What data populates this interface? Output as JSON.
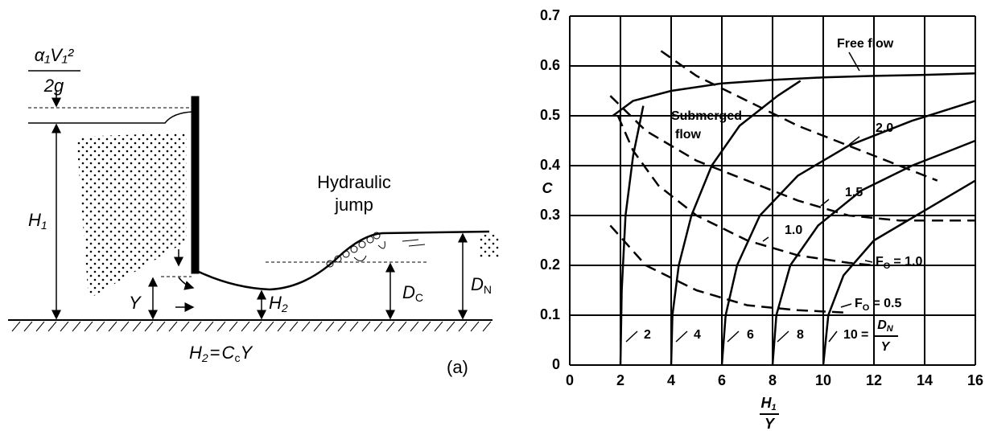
{
  "diagram": {
    "velocity_head": {
      "numerator": "α₁V₁²",
      "denominator": "2g"
    },
    "upstream_depth": {
      "symbol": "H",
      "subscript": "1"
    },
    "gate_opening": "Y",
    "contracted_depth": {
      "symbol": "H",
      "subscript": "2"
    },
    "jump_label": [
      "Hydraulic",
      "jump"
    ],
    "conjugate_depth": {
      "symbol": "D",
      "subscript": "C"
    },
    "normal_depth": {
      "symbol": "D",
      "subscript": "N"
    },
    "equation": {
      "lhs_symbol": "H",
      "lhs_subscript": "2",
      "equals": "=",
      "rhs_symbol": "C",
      "rhs_subscript": "c",
      "rhs_tail": "Y"
    },
    "panel_label": "(a)"
  },
  "chart_data": {
    "type": "line",
    "y_label": "C",
    "x_label": {
      "symbol": "H",
      "subscript": "1",
      "denominator": "Y"
    },
    "xlim": [
      0,
      16
    ],
    "ylim": [
      0,
      0.7
    ],
    "xticks": [
      0,
      2,
      4,
      6,
      8,
      10,
      12,
      14,
      16
    ],
    "yticks": [
      0,
      0.1,
      0.2,
      0.3,
      0.4,
      0.5,
      0.6,
      0.7
    ],
    "grid": true,
    "series": [
      {
        "name": "2",
        "color": "#000000",
        "style": "solid",
        "x": [
          2,
          2.05,
          2.2,
          2.5,
          2.9
        ],
        "values": [
          0,
          0.15,
          0.3,
          0.42,
          0.52
        ]
      },
      {
        "name": "4",
        "color": "#000000",
        "style": "solid",
        "x": [
          4,
          4.05,
          4.3,
          4.8,
          5.6,
          6.7,
          8.2,
          9.1
        ],
        "values": [
          0,
          0.1,
          0.2,
          0.3,
          0.4,
          0.48,
          0.54,
          0.57
        ]
      },
      {
        "name": "6",
        "color": "#000000",
        "style": "solid",
        "x": [
          6,
          6.15,
          6.6,
          7.5,
          9,
          11,
          13.5,
          16
        ],
        "values": [
          0,
          0.1,
          0.2,
          0.3,
          0.38,
          0.44,
          0.49,
          0.53
        ]
      },
      {
        "name": "8",
        "color": "#000000",
        "style": "solid",
        "x": [
          8,
          8.15,
          8.7,
          9.8,
          11.5,
          13.5,
          16
        ],
        "values": [
          0,
          0.1,
          0.2,
          0.28,
          0.35,
          0.4,
          0.45
        ]
      },
      {
        "name": "10",
        "color": "#000000",
        "style": "solid",
        "x": [
          10,
          10.2,
          10.8,
          12,
          14,
          16
        ],
        "values": [
          0,
          0.1,
          0.18,
          0.25,
          0.31,
          0.37
        ]
      },
      {
        "name": "Free flow",
        "color": "#000000",
        "style": "solid",
        "x": [
          1.7,
          2.5,
          4,
          6,
          8,
          10,
          12,
          14,
          16
        ],
        "values": [
          0.5,
          0.53,
          0.55,
          0.565,
          0.572,
          0.577,
          0.58,
          0.582,
          0.585
        ]
      },
      {
        "name": "2.0",
        "color": "#000000",
        "style": "dashed",
        "x": [
          3.6,
          5,
          7,
          9,
          11,
          13,
          14.5
        ],
        "values": [
          0.63,
          0.58,
          0.53,
          0.48,
          0.44,
          0.4,
          0.37
        ]
      },
      {
        "name": "1.5",
        "color": "#000000",
        "style": "dashed",
        "x": [
          1.6,
          3,
          5,
          7,
          9,
          11,
          13,
          16
        ],
        "values": [
          0.54,
          0.47,
          0.41,
          0.37,
          0.33,
          0.3,
          0.29,
          0.29
        ]
      },
      {
        "name": "1.0",
        "color": "#000000",
        "style": "dashed",
        "x": [
          1.9,
          2.5,
          3.5,
          5,
          7,
          9,
          11,
          12
        ],
        "values": [
          0.5,
          0.43,
          0.36,
          0.3,
          0.25,
          0.22,
          0.205,
          0.2
        ]
      },
      {
        "color": "#000000",
        "style": "dashed",
        "x": [
          1.6,
          3,
          5,
          7,
          9,
          11
        ],
        "values": [
          0.28,
          0.2,
          0.15,
          0.12,
          0.11,
          0.105
        ]
      }
    ],
    "region_labels": [
      "Submerged",
      "flow"
    ],
    "froude_labels": [
      {
        "symbol": "F",
        "subscript": "O",
        "text": "= 1.0"
      },
      {
        "symbol": "F",
        "subscript": "O",
        "text": "= 0.5"
      }
    ],
    "ratio_label": {
      "equals": "=",
      "symbol": "D",
      "subscript": "N",
      "denominator": "Y"
    }
  }
}
